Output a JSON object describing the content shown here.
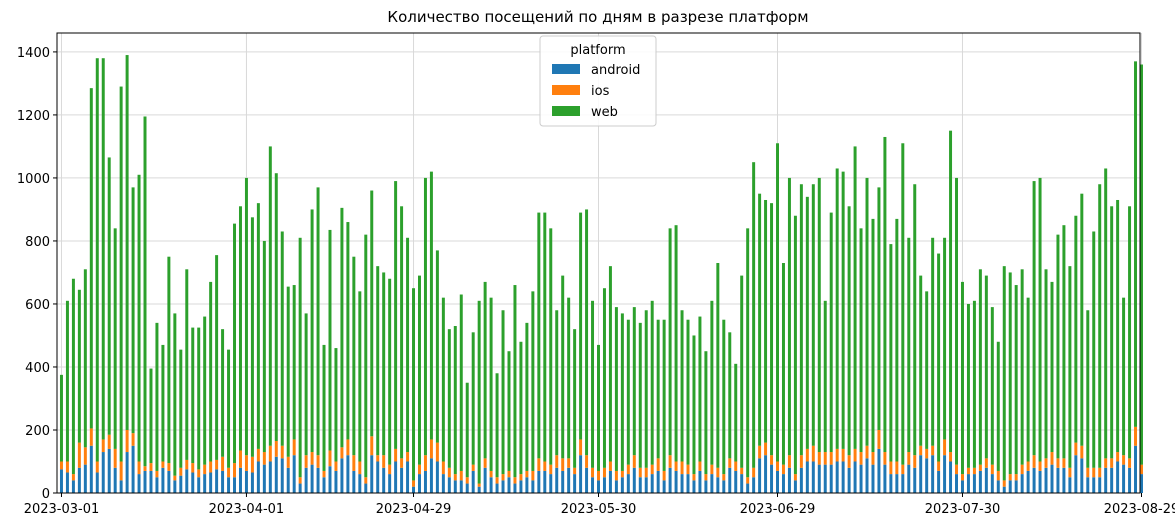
{
  "chart_data": {
    "type": "bar",
    "stacked": true,
    "title": "Количество посещений по дням в разрезе платформ",
    "xlabel": "",
    "ylabel": "",
    "ylim": [
      0,
      1460
    ],
    "y_ticks": [
      0,
      200,
      400,
      600,
      800,
      1000,
      1200,
      1400
    ],
    "x_tick_labels": [
      "2023-03-01",
      "2023-04-01",
      "2023-04-29",
      "2023-05-30",
      "2023-06-29",
      "2023-07-30",
      "2023-08-29"
    ],
    "grid": true,
    "legend": {
      "title": "platform",
      "position": "top-center"
    },
    "start_date": "2023-03-01",
    "end_date": "2023-08-29",
    "series": [
      {
        "name": "android",
        "color": "#1f77b4",
        "values": [
          75,
          65,
          40,
          80,
          90,
          150,
          65,
          130,
          140,
          80,
          40,
          130,
          150,
          60,
          70,
          70,
          50,
          80,
          70,
          40,
          55,
          75,
          65,
          50,
          60,
          65,
          75,
          70,
          50,
          50,
          80,
          70,
          65,
          100,
          90,
          100,
          115,
          110,
          80,
          120,
          30,
          80,
          90,
          80,
          50,
          85,
          70,
          110,
          120,
          70,
          60,
          30,
          120,
          100,
          80,
          60,
          100,
          80,
          100,
          20,
          60,
          70,
          110,
          100,
          60,
          50,
          40,
          40,
          30,
          70,
          20,
          80,
          50,
          30,
          40,
          50,
          30,
          40,
          50,
          40,
          70,
          70,
          60,
          80,
          70,
          80,
          60,
          120,
          80,
          50,
          40,
          50,
          70,
          40,
          50,
          60,
          80,
          50,
          50,
          60,
          70,
          40,
          80,
          70,
          60,
          60,
          40,
          70,
          40,
          60,
          50,
          40,
          80,
          70,
          60,
          30,
          50,
          110,
          120,
          90,
          70,
          60,
          80,
          40,
          80,
          100,
          100,
          90,
          90,
          90,
          100,
          100,
          80,
          100,
          90,
          110,
          90,
          140,
          90,
          60,
          60,
          60,
          90,
          80,
          120,
          110,
          120,
          70,
          120,
          100,
          60,
          40,
          60,
          60,
          70,
          80,
          60,
          40,
          20,
          40,
          40,
          60,
          70,
          80,
          70,
          80,
          90,
          80,
          80,
          50,
          120,
          110,
          50,
          50,
          50,
          80,
          80,
          100,
          90,
          80,
          150,
          60,
          50,
          40,
          60
        ]
      },
      {
        "name": "ios",
        "color": "#ff7f0e",
        "values": [
          25,
          35,
          20,
          80,
          55,
          55,
          35,
          40,
          45,
          60,
          60,
          70,
          40,
          40,
          15,
          25,
          20,
          20,
          25,
          15,
          25,
          30,
          30,
          25,
          30,
          35,
          30,
          45,
          30,
          45,
          55,
          50,
          50,
          40,
          40,
          50,
          50,
          40,
          35,
          50,
          20,
          40,
          40,
          40,
          20,
          50,
          30,
          35,
          50,
          50,
          40,
          20,
          60,
          20,
          40,
          30,
          40,
          30,
          30,
          20,
          30,
          50,
          60,
          60,
          40,
          30,
          20,
          30,
          20,
          20,
          10,
          30,
          20,
          20,
          20,
          20,
          20,
          20,
          20,
          30,
          40,
          30,
          30,
          40,
          40,
          30,
          20,
          50,
          40,
          30,
          30,
          30,
          30,
          30,
          20,
          30,
          40,
          30,
          30,
          30,
          40,
          30,
          40,
          30,
          40,
          30,
          20,
          30,
          20,
          30,
          30,
          20,
          30,
          30,
          20,
          20,
          30,
          40,
          40,
          30,
          30,
          30,
          40,
          20,
          40,
          40,
          50,
          40,
          40,
          40,
          40,
          40,
          40,
          40,
          40,
          40,
          40,
          60,
          40,
          40,
          40,
          30,
          40,
          40,
          30,
          30,
          30,
          30,
          50,
          30,
          30,
          20,
          20,
          20,
          20,
          30,
          30,
          30,
          20,
          20,
          20,
          30,
          30,
          40,
          30,
          30,
          40,
          30,
          30,
          30,
          40,
          40,
          30,
          30,
          30,
          30,
          30,
          30,
          30,
          30,
          60,
          30,
          30,
          30,
          50
        ]
      },
      {
        "name": "web",
        "color": "#2ca02c",
        "values": [
          275,
          510,
          620,
          485,
          565,
          1080,
          1280,
          1210,
          880,
          700,
          1190,
          1190,
          780,
          910,
          1110,
          300,
          470,
          370,
          655,
          515,
          375,
          605,
          430,
          450,
          470,
          570,
          650,
          405,
          375,
          760,
          775,
          880,
          760,
          780,
          670,
          950,
          850,
          680,
          540,
          490,
          760,
          450,
          770,
          850,
          400,
          700,
          360,
          760,
          690,
          630,
          540,
          770,
          780,
          600,
          580,
          590,
          850,
          800,
          680,
          610,
          600,
          880,
          850,
          610,
          520,
          440,
          470,
          560,
          300,
          420,
          580,
          560,
          550,
          330,
          520,
          380,
          610,
          420,
          470,
          570,
          780,
          790,
          750,
          460,
          580,
          510,
          440,
          720,
          780,
          530,
          400,
          570,
          620,
          520,
          500,
          460,
          470,
          460,
          500,
          520,
          440,
          480,
          720,
          750,
          480,
          460,
          440,
          460,
          390,
          520,
          650,
          490,
          400,
          310,
          610,
          790,
          970,
          800,
          770,
          800,
          1010,
          640,
          880,
          820,
          860,
          800,
          830,
          870,
          480,
          760,
          890,
          880,
          790,
          960,
          710,
          850,
          740,
          770,
          1000,
          690,
          770,
          1020,
          680,
          860,
          540,
          500,
          660,
          660,
          640,
          1020,
          910,
          610,
          520,
          530,
          620,
          580,
          500,
          410,
          680,
          640,
          600,
          620,
          520,
          870,
          900,
          600,
          540,
          710,
          740,
          640,
          720,
          800,
          500,
          750,
          900,
          920,
          800,
          800,
          500,
          800,
          1160,
          1270,
          850
        ]
      }
    ]
  }
}
